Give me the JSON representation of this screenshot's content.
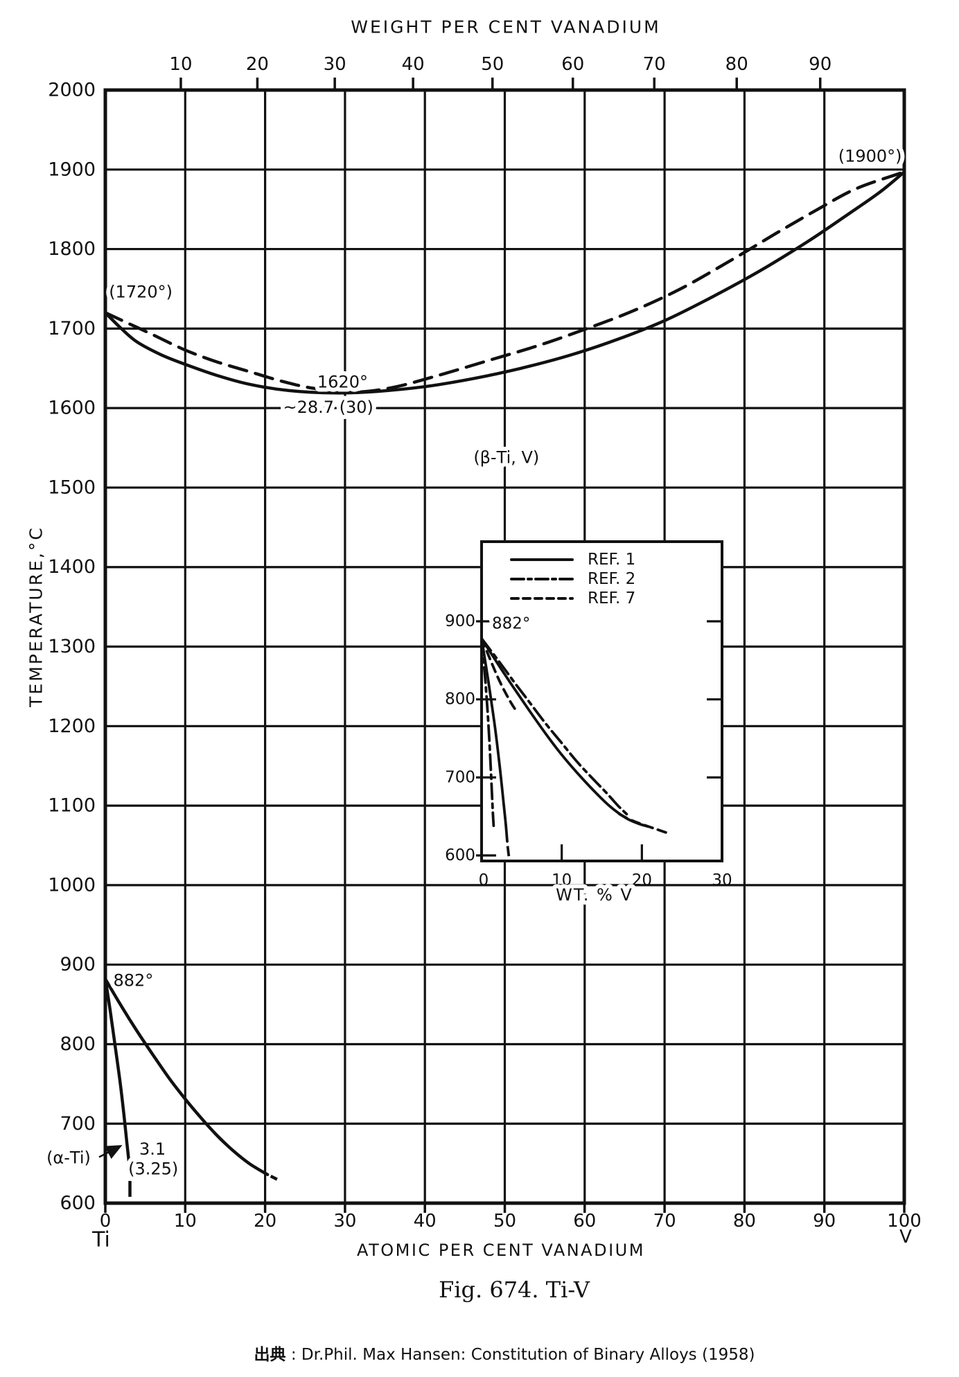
{
  "figure": {
    "caption": "Fig. 674. Ti-V",
    "source_prefix": "出典",
    "source_rest": " : Dr.Phil. Max Hansen: Constitution of Binary Alloys (1958)"
  },
  "chart_data": {
    "type": "line",
    "title": "Ti-V binary phase diagram",
    "colors": {
      "ink": "#111111",
      "background": "#ffffff"
    },
    "main": {
      "top_axis": {
        "label": "WEIGHT PER CENT VANADIUM",
        "ticks": [
          {
            "label": "10",
            "at_pct": 9.45
          },
          {
            "label": "20",
            "at_pct": 19.03
          },
          {
            "label": "30",
            "at_pct": 28.72
          },
          {
            "label": "40",
            "at_pct": 38.52
          },
          {
            "label": "50",
            "at_pct": 48.46
          },
          {
            "label": "60",
            "at_pct": 58.52
          },
          {
            "label": "70",
            "at_pct": 68.71
          },
          {
            "label": "80",
            "at_pct": 79.03
          },
          {
            "label": "90",
            "at_pct": 89.48
          }
        ]
      },
      "x_axis": {
        "label": "ATOMIC PER CENT VANADIUM",
        "min": 0,
        "max": 100,
        "ticks": [
          0,
          10,
          20,
          30,
          40,
          50,
          60,
          70,
          80,
          90,
          100
        ],
        "left_end_label": "Ti",
        "right_end_label": "V"
      },
      "y_axis": {
        "label": "TEMPERATURE,°C",
        "min": 600,
        "max": 2000,
        "ticks": [
          600,
          700,
          800,
          900,
          1000,
          1100,
          1200,
          1300,
          1400,
          1500,
          1600,
          1700,
          1800,
          1900,
          2000
        ]
      },
      "grid": true,
      "series": [
        {
          "name": "liquidus",
          "style": "main_dashed",
          "points": [
            [
              0,
              1720
            ],
            [
              3,
              1706
            ],
            [
              6,
              1692
            ],
            [
              10,
              1673
            ],
            [
              14,
              1658
            ],
            [
              18,
              1646
            ],
            [
              22,
              1634
            ],
            [
              26,
              1625
            ],
            [
              31,
              1620
            ],
            [
              36,
              1626
            ],
            [
              42,
              1642
            ],
            [
              48,
              1660
            ],
            [
              54,
              1678
            ],
            [
              60,
              1699
            ],
            [
              66,
              1722
            ],
            [
              72,
              1750
            ],
            [
              78,
              1784
            ],
            [
              84,
              1820
            ],
            [
              89,
              1849
            ],
            [
              94,
              1876
            ],
            [
              100,
              1897
            ]
          ]
        },
        {
          "name": "solidus",
          "style": "solid",
          "points": [
            [
              0,
              1720
            ],
            [
              2,
              1700
            ],
            [
              4,
              1683
            ],
            [
              7,
              1667
            ],
            [
              10,
              1655
            ],
            [
              14,
              1641
            ],
            [
              18,
              1630
            ],
            [
              23,
              1622
            ],
            [
              28.7,
              1619
            ],
            [
              34,
              1621
            ],
            [
              40,
              1627
            ],
            [
              46,
              1637
            ],
            [
              52,
              1650
            ],
            [
              58,
              1666
            ],
            [
              64,
              1686
            ],
            [
              70,
              1710
            ],
            [
              76,
              1740
            ],
            [
              82,
              1773
            ],
            [
              88,
              1810
            ],
            [
              93,
              1844
            ],
            [
              97,
              1872
            ],
            [
              100,
              1897
            ]
          ]
        },
        {
          "name": "alpha-solvus",
          "style": "solid",
          "points": [
            [
              0,
              882
            ],
            [
              0.6,
              843
            ],
            [
              1.2,
              800
            ],
            [
              1.8,
              756
            ],
            [
              2.3,
              714
            ],
            [
              2.7,
              676
            ],
            [
              3,
              649
            ],
            [
              3.25,
              634
            ]
          ]
        },
        {
          "name": "beta-transus",
          "style": "solid",
          "points": [
            [
              0,
              882
            ],
            [
              2,
              848
            ],
            [
              4,
              816
            ],
            [
              6,
              786
            ],
            [
              8,
              757
            ],
            [
              10,
              731
            ],
            [
              12,
              707
            ],
            [
              14,
              685
            ],
            [
              16,
              666
            ],
            [
              18,
              650
            ],
            [
              19.6,
              640
            ],
            [
              20.3,
              636
            ]
          ]
        }
      ],
      "tails": [
        {
          "name": "alpha-solvus-tail",
          "points": [
            [
              3.08,
              628
            ],
            [
              3.08,
              608
            ]
          ]
        },
        {
          "name": "beta-transus-tail",
          "points": [
            [
              20.7,
              634
            ],
            [
              21.5,
              630
            ]
          ]
        }
      ],
      "annotations": [
        {
          "text": "(1720°)",
          "at": 0.45,
          "T": 1746,
          "anchor": "start"
        },
        {
          "text": "(1900°)",
          "at": 99.7,
          "T": 1917,
          "anchor": "end"
        },
        {
          "text": "1620°",
          "at": 29.7,
          "T": 1633,
          "anchor": "middle"
        },
        {
          "text": "~28.7 (30)",
          "at": 27.9,
          "T": 1601,
          "anchor": "middle"
        },
        {
          "text": "(β-Ti, V)",
          "at": 50.2,
          "T": 1538,
          "anchor": "middle"
        },
        {
          "text": "882°",
          "at": 1.0,
          "T": 880,
          "anchor": "start"
        },
        {
          "text": "(α-Ti)",
          "at": -4.6,
          "T": 657,
          "anchor": "middle"
        },
        {
          "text": "3.1",
          "at": 5.9,
          "T": 668,
          "anchor": "middle"
        },
        {
          "text": "(3.25)",
          "at": 6.0,
          "T": 643,
          "anchor": "middle"
        }
      ],
      "arrow": {
        "from": [
          -0.78,
          658
        ],
        "to": [
          1.73,
          671
        ]
      }
    },
    "inset": {
      "x_axis": {
        "label": "WT. % V",
        "min": 0,
        "max": 30,
        "ticks": [
          0,
          10,
          20,
          30
        ]
      },
      "y_axis": {
        "min": 600,
        "max": 900,
        "ticks": [
          900,
          800,
          700,
          600
        ]
      },
      "legend": [
        {
          "label": "REF. 1",
          "style": "solid"
        },
        {
          "label": "REF. 2",
          "style": "dashdot"
        },
        {
          "label": "REF. 7",
          "style": "dashed"
        }
      ],
      "series": [
        {
          "name": "ref1-beta-transus",
          "style": "solid",
          "points": [
            [
              0,
              878
            ],
            [
              2,
              846
            ],
            [
              4,
              815
            ],
            [
              6,
              785
            ],
            [
              8,
              756
            ],
            [
              10,
              729
            ],
            [
              12,
              705
            ],
            [
              14,
              683
            ],
            [
              16,
              663
            ],
            [
              18,
              648
            ],
            [
              19.5,
              641
            ],
            [
              20.8,
              637
            ]
          ]
        },
        {
          "name": "ref2-beta-transus",
          "style": "dashdot",
          "points": [
            [
              0,
              878
            ],
            [
              2,
              851
            ],
            [
              4,
              823
            ],
            [
              6,
              796
            ],
            [
              8,
              769
            ],
            [
              10,
              744
            ],
            [
              12,
              719
            ],
            [
              14,
              697
            ],
            [
              15.5,
              681
            ],
            [
              17,
              664
            ],
            [
              18.2,
              652
            ]
          ]
        },
        {
          "name": "ref7-beta-tail",
          "style": "dashed",
          "points": [
            [
              17.2,
              653
            ],
            [
              18.5,
              646
            ],
            [
              20,
              640
            ],
            [
              21.7,
              634
            ],
            [
              23.4,
              628
            ]
          ]
        },
        {
          "name": "ref1-alpha-solvus",
          "style": "solid",
          "points": [
            [
              0,
              878
            ],
            [
              0.8,
              826
            ],
            [
              1.6,
              770
            ],
            [
              2.2,
              720
            ],
            [
              2.7,
              672
            ],
            [
              3,
              642
            ],
            [
              3.2,
              618
            ]
          ]
        },
        {
          "name": "ref2-alpha-solvus",
          "style": "dashdot",
          "points": [
            [
              0,
              878
            ],
            [
              0.5,
              820
            ],
            [
              0.9,
              760
            ],
            [
              1.2,
              700
            ],
            [
              1.4,
              656
            ],
            [
              1.5,
              638
            ]
          ]
        },
        {
          "name": "ref7-alpha-boundary",
          "style": "dashed",
          "points": [
            [
              0,
              878
            ],
            [
              1.2,
              848
            ],
            [
              2.4,
              820
            ],
            [
              3.6,
              797
            ],
            [
              4.4,
              784
            ]
          ]
        }
      ],
      "tails": [
        {
          "name": "ref1-alpha-tail",
          "points": [
            [
              3.25,
              612
            ],
            [
              3.4,
              599
            ]
          ]
        }
      ],
      "annotations": [
        {
          "text": "882°",
          "wt": 1.3,
          "T": 897,
          "anchor": "start"
        }
      ]
    }
  }
}
